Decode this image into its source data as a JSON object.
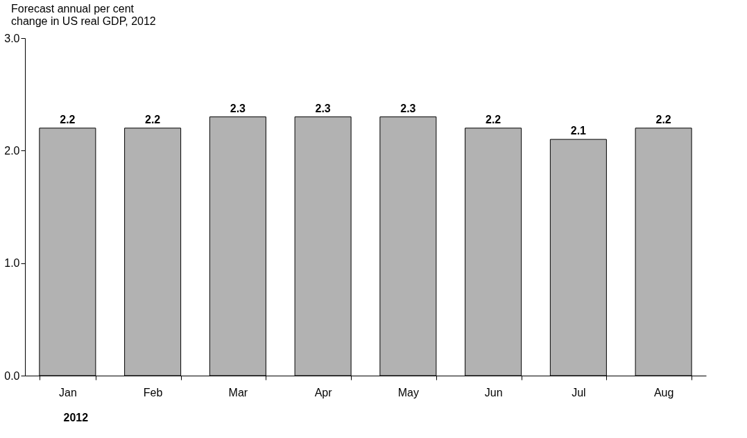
{
  "chart_data": {
    "type": "bar",
    "title": "Forecast annual per cent change in US real GDP, 2012",
    "xlabel": "2012",
    "categories": [
      "Jan",
      "Feb",
      "Mar",
      "Apr",
      "May",
      "Jun",
      "Jul",
      "Aug"
    ],
    "values": [
      2.2,
      2.2,
      2.3,
      2.3,
      2.3,
      2.2,
      2.1,
      2.2
    ],
    "color": "#b2b2b2",
    "ylim": [
      0,
      3
    ],
    "yticks": [
      {
        "value": 0,
        "label": "0.0"
      },
      {
        "value": 1,
        "label": "1.0"
      },
      {
        "value": 2,
        "label": "2.0"
      },
      {
        "value": 3,
        "label": "3.0"
      }
    ],
    "data_labels": true,
    "grid": false
  }
}
